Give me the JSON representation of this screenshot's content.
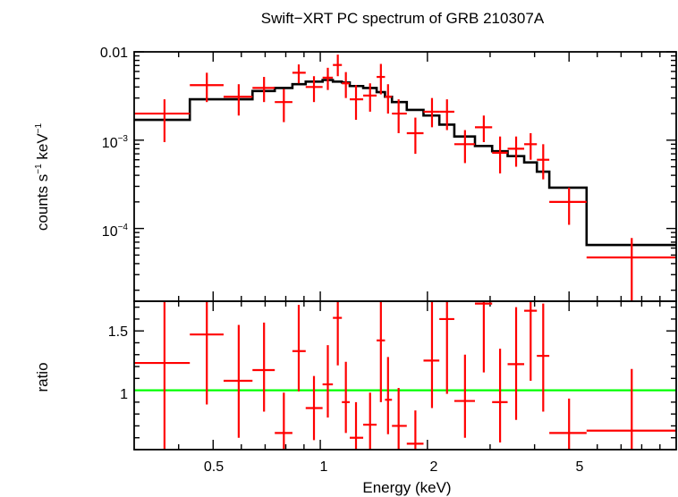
{
  "chart_data": [
    {
      "type": "scatter",
      "title": "Swift−XRT PC spectrum of GRB 210307A",
      "xlabel": "",
      "ylabel_parts": [
        "counts s",
        "−1",
        " keV",
        "−1"
      ],
      "xscale": "log",
      "yscale": "log",
      "xlim": [
        0.3,
        10
      ],
      "ylim": [
        1.5e-05,
        0.01
      ],
      "ytick_labels": [
        {
          "value": 0.01,
          "parts": [
            "0.01"
          ]
        },
        {
          "value": 0.001,
          "parts": [
            "10",
            "−3"
          ]
        },
        {
          "value": 0.0001,
          "parts": [
            "10",
            "−4"
          ]
        }
      ],
      "series": [
        {
          "type": "errorbar",
          "color": "#ff0000",
          "points": [
            {
              "x": 0.365,
              "xlo": 0.3,
              "xhi": 0.43,
              "y": 0.002,
              "ylo": 0.00095,
              "yhi": 0.0029
            },
            {
              "x": 0.48,
              "xlo": 0.43,
              "xhi": 0.535,
              "y": 0.0042,
              "ylo": 0.0027,
              "yhi": 0.0058
            },
            {
              "x": 0.59,
              "xlo": 0.535,
              "xhi": 0.645,
              "y": 0.0031,
              "ylo": 0.0019,
              "yhi": 0.0043
            },
            {
              "x": 0.695,
              "xlo": 0.645,
              "xhi": 0.745,
              "y": 0.0039,
              "ylo": 0.0027,
              "yhi": 0.0052
            },
            {
              "x": 0.79,
              "xlo": 0.745,
              "xhi": 0.835,
              "y": 0.0027,
              "ylo": 0.0016,
              "yhi": 0.0038
            },
            {
              "x": 0.87,
              "xlo": 0.835,
              "xhi": 0.91,
              "y": 0.0058,
              "ylo": 0.0044,
              "yhi": 0.0072
            },
            {
              "x": 0.96,
              "xlo": 0.91,
              "xhi": 1.015,
              "y": 0.004,
              "ylo": 0.0027,
              "yhi": 0.0053
            },
            {
              "x": 1.05,
              "xlo": 1.015,
              "xhi": 1.085,
              "y": 0.0051,
              "ylo": 0.0037,
              "yhi": 0.0066
            },
            {
              "x": 1.12,
              "xlo": 1.085,
              "xhi": 1.15,
              "y": 0.0071,
              "ylo": 0.0053,
              "yhi": 0.0093
            },
            {
              "x": 1.18,
              "xlo": 1.15,
              "xhi": 1.21,
              "y": 0.0044,
              "ylo": 0.003,
              "yhi": 0.0059
            },
            {
              "x": 1.26,
              "xlo": 1.21,
              "xhi": 1.32,
              "y": 0.0029,
              "ylo": 0.0017,
              "yhi": 0.0042
            },
            {
              "x": 1.38,
              "xlo": 1.32,
              "xhi": 1.44,
              "y": 0.0032,
              "ylo": 0.0021,
              "yhi": 0.0044
            },
            {
              "x": 1.48,
              "xlo": 1.44,
              "xhi": 1.52,
              "y": 0.0052,
              "ylo": 0.0033,
              "yhi": 0.0073
            },
            {
              "x": 1.55,
              "xlo": 1.52,
              "xhi": 1.59,
              "y": 0.0031,
              "ylo": 0.002,
              "yhi": 0.0043
            },
            {
              "x": 1.66,
              "xlo": 1.59,
              "xhi": 1.75,
              "y": 0.002,
              "ylo": 0.0012,
              "yhi": 0.0029
            },
            {
              "x": 1.85,
              "xlo": 1.75,
              "xhi": 1.95,
              "y": 0.0012,
              "ylo": 0.0007,
              "yhi": 0.0018
            },
            {
              "x": 2.06,
              "xlo": 1.95,
              "xhi": 2.16,
              "y": 0.0021,
              "ylo": 0.0014,
              "yhi": 0.003
            },
            {
              "x": 2.27,
              "xlo": 2.16,
              "xhi": 2.38,
              "y": 0.0021,
              "ylo": 0.0013,
              "yhi": 0.0029
            },
            {
              "x": 2.55,
              "xlo": 2.38,
              "xhi": 2.72,
              "y": 0.0009,
              "ylo": 0.00055,
              "yhi": 0.0013
            },
            {
              "x": 2.88,
              "xlo": 2.72,
              "xhi": 3.04,
              "y": 0.0014,
              "ylo": 0.00095,
              "yhi": 0.0019
            },
            {
              "x": 3.2,
              "xlo": 3.04,
              "xhi": 3.36,
              "y": 0.00072,
              "ylo": 0.00042,
              "yhi": 0.0011
            },
            {
              "x": 3.55,
              "xlo": 3.36,
              "xhi": 3.74,
              "y": 0.0008,
              "ylo": 0.0005,
              "yhi": 0.0011
            },
            {
              "x": 3.9,
              "xlo": 3.74,
              "xhi": 4.06,
              "y": 0.0009,
              "ylo": 0.0006,
              "yhi": 0.0012
            },
            {
              "x": 4.23,
              "xlo": 4.06,
              "xhi": 4.4,
              "y": 0.0006,
              "ylo": 0.00036,
              "yhi": 0.0009
            },
            {
              "x": 5.0,
              "xlo": 4.4,
              "xhi": 5.6,
              "y": 0.0002,
              "ylo": 0.00011,
              "yhi": 0.00029
            },
            {
              "x": 7.5,
              "xlo": 5.6,
              "xhi": 10.0,
              "y": 4.7e-05,
              "ylo": 1.5e-05,
              "yhi": 7.8e-05
            }
          ]
        },
        {
          "type": "step",
          "color": "#000000",
          "edges": [
            0.3,
            0.43,
            0.535,
            0.645,
            0.745,
            0.835,
            0.91,
            1.015,
            1.085,
            1.15,
            1.21,
            1.32,
            1.44,
            1.52,
            1.59,
            1.75,
            1.95,
            2.16,
            2.38,
            2.72,
            3.04,
            3.36,
            3.74,
            4.06,
            4.4,
            5.6,
            10.0
          ],
          "values": [
            0.0017,
            0.0029,
            0.0029,
            0.0036,
            0.0039,
            0.0043,
            0.0046,
            0.0048,
            0.0046,
            0.0045,
            0.0041,
            0.0039,
            0.0035,
            0.0031,
            0.0027,
            0.0022,
            0.0019,
            0.0015,
            0.0011,
            0.00086,
            0.00075,
            0.00066,
            0.00056,
            0.00044,
            0.00029,
            6.5e-05
          ]
        }
      ]
    },
    {
      "type": "scatter",
      "xlabel": "Energy (keV)",
      "ylabel": "ratio",
      "xscale": "log",
      "xlim": [
        0.3,
        10
      ],
      "ylim": [
        0.5,
        1.75
      ],
      "xticks": [
        {
          "value": 0.5,
          "label": "0.5"
        },
        {
          "value": 1,
          "label": "1"
        },
        {
          "value": 2,
          "label": "2"
        },
        {
          "value": 5,
          "label": "5"
        }
      ],
      "yticks": [
        {
          "value": 1,
          "label": "1"
        },
        {
          "value": 1.5,
          "label": "1.5"
        }
      ],
      "reference_line": {
        "y": 1,
        "color": "#00ff00"
      },
      "series": [
        {
          "type": "errorbar",
          "color": "#ff0000",
          "points": [
            {
              "x": 0.365,
              "xlo": 0.3,
              "xhi": 0.43,
              "y": 1.23,
              "ylo": 0.5,
              "yhi": 1.85
            },
            {
              "x": 0.48,
              "xlo": 0.43,
              "xhi": 0.535,
              "y": 1.47,
              "ylo": 0.88,
              "yhi": 2.0
            },
            {
              "x": 0.59,
              "xlo": 0.535,
              "xhi": 0.645,
              "y": 1.08,
              "ylo": 0.6,
              "yhi": 1.55
            },
            {
              "x": 0.695,
              "xlo": 0.645,
              "xhi": 0.745,
              "y": 1.17,
              "ylo": 0.82,
              "yhi": 1.57
            },
            {
              "x": 0.79,
              "xlo": 0.745,
              "xhi": 0.835,
              "y": 0.64,
              "ylo": 0.4,
              "yhi": 0.98
            },
            {
              "x": 0.87,
              "xlo": 0.835,
              "xhi": 0.91,
              "y": 1.33,
              "ylo": 0.99,
              "yhi": 1.72
            },
            {
              "x": 0.96,
              "xlo": 0.91,
              "xhi": 1.015,
              "y": 0.85,
              "ylo": 0.58,
              "yhi": 1.12
            },
            {
              "x": 1.05,
              "xlo": 1.015,
              "xhi": 1.085,
              "y": 1.05,
              "ylo": 0.77,
              "yhi": 1.38
            },
            {
              "x": 1.12,
              "xlo": 1.085,
              "xhi": 1.15,
              "y": 1.61,
              "ylo": 1.21,
              "yhi": 2.1
            },
            {
              "x": 1.18,
              "xlo": 1.15,
              "xhi": 1.21,
              "y": 0.9,
              "ylo": 0.64,
              "yhi": 1.24
            },
            {
              "x": 1.26,
              "xlo": 1.21,
              "xhi": 1.32,
              "y": 0.6,
              "ylo": 0.36,
              "yhi": 0.9
            },
            {
              "x": 1.38,
              "xlo": 1.32,
              "xhi": 1.44,
              "y": 0.71,
              "ylo": 0.48,
              "yhi": 0.98
            },
            {
              "x": 1.48,
              "xlo": 1.44,
              "xhi": 1.52,
              "y": 1.42,
              "ylo": 0.9,
              "yhi": 2.0
            },
            {
              "x": 1.55,
              "xlo": 1.52,
              "xhi": 1.59,
              "y": 0.92,
              "ylo": 0.63,
              "yhi": 1.28
            },
            {
              "x": 1.66,
              "xlo": 1.59,
              "xhi": 1.75,
              "y": 0.7,
              "ylo": 0.4,
              "yhi": 1.02
            },
            {
              "x": 1.85,
              "xlo": 1.75,
              "xhi": 1.95,
              "y": 0.55,
              "ylo": 0.3,
              "yhi": 0.83
            },
            {
              "x": 2.06,
              "xlo": 1.95,
              "xhi": 2.16,
              "y": 1.25,
              "ylo": 0.85,
              "yhi": 1.77
            },
            {
              "x": 2.27,
              "xlo": 2.16,
              "xhi": 2.38,
              "y": 1.6,
              "ylo": 0.97,
              "yhi": 2.2
            },
            {
              "x": 2.55,
              "xlo": 2.38,
              "xhi": 2.72,
              "y": 0.91,
              "ylo": 0.6,
              "yhi": 1.3
            },
            {
              "x": 2.88,
              "xlo": 2.72,
              "xhi": 3.04,
              "y": 1.73,
              "ylo": 1.15,
              "yhi": 2.2
            },
            {
              "x": 3.2,
              "xlo": 3.04,
              "xhi": 3.36,
              "y": 0.9,
              "ylo": 0.56,
              "yhi": 1.35
            },
            {
              "x": 3.55,
              "xlo": 3.36,
              "xhi": 3.74,
              "y": 1.22,
              "ylo": 0.75,
              "yhi": 1.7
            },
            {
              "x": 3.9,
              "xlo": 3.74,
              "xhi": 4.06,
              "y": 1.67,
              "ylo": 1.08,
              "yhi": 2.2
            },
            {
              "x": 4.23,
              "xlo": 4.06,
              "xhi": 4.4,
              "y": 1.29,
              "ylo": 0.82,
              "yhi": 1.73
            },
            {
              "x": 5.0,
              "xlo": 4.4,
              "xhi": 5.6,
              "y": 0.64,
              "ylo": 0.36,
              "yhi": 0.93
            },
            {
              "x": 7.5,
              "xlo": 5.6,
              "xhi": 10.0,
              "y": 0.66,
              "ylo": 0.2,
              "yhi": 1.18
            }
          ]
        }
      ]
    }
  ]
}
